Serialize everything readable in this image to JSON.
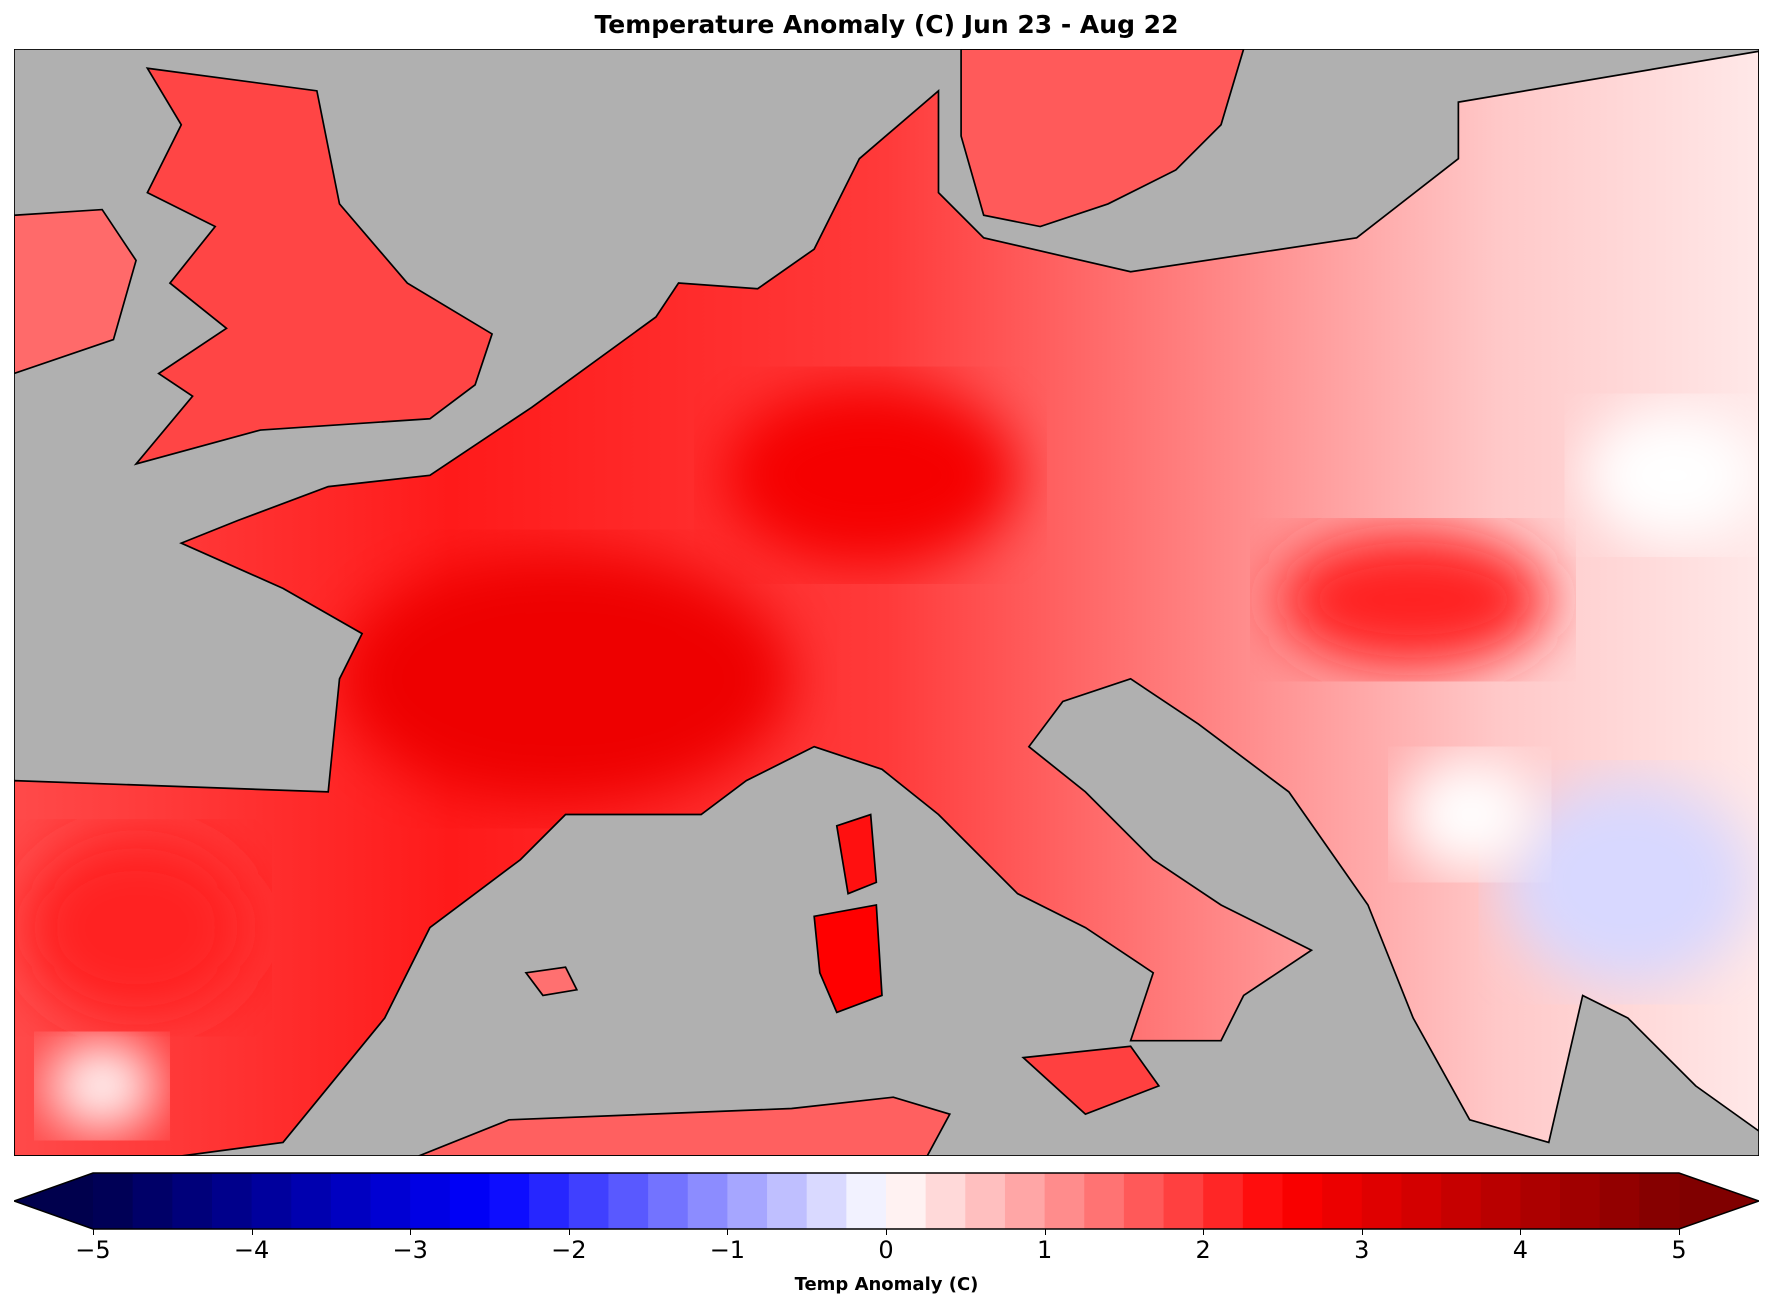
{
  "chart_data": {
    "type": "heatmap",
    "title": "Temperature Anomaly (C) Jun 23 - Aug 22",
    "colorbar": {
      "label": "Temp Anomaly (C)",
      "range": [
        -5,
        5
      ],
      "step": 0.25,
      "extend": "both",
      "colormap": "seismic",
      "ticks": [
        "−5",
        "−4",
        "−3",
        "−2",
        "−1",
        "0",
        "1",
        "2",
        "3",
        "4",
        "5"
      ]
    },
    "map": {
      "region": "Western and Central Europe",
      "ocean_color": "#b0b0b0",
      "typical_anomaly_range": [
        -1,
        3
      ]
    }
  }
}
